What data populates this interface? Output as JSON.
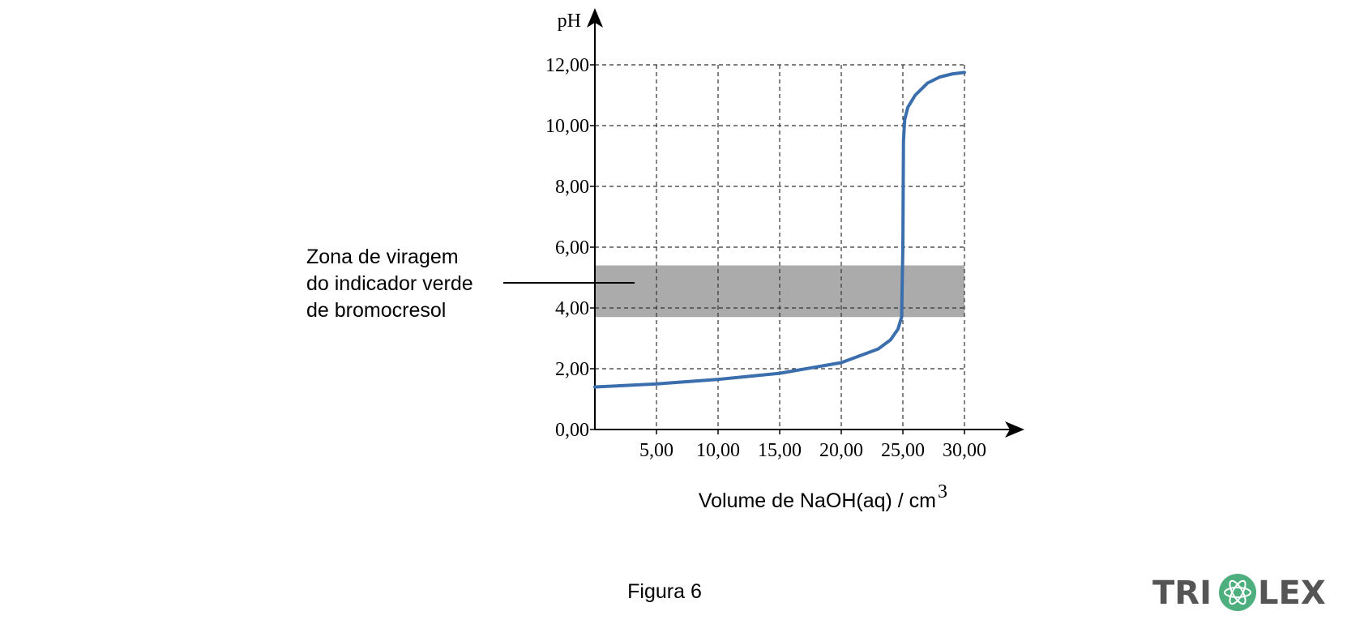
{
  "chart_data": {
    "type": "line",
    "y_label": "pH",
    "x_label": "Volume de NaOH(aq) / cm",
    "x_label_sup": "3",
    "x": [
      0,
      5,
      10,
      15,
      20,
      23,
      24,
      24.6,
      24.9,
      25.0,
      25.05,
      25.15,
      25.4,
      26,
      27,
      28,
      29,
      30
    ],
    "series": [
      {
        "color": "#3a6eac",
        "values": [
          1.4,
          1.5,
          1.65,
          1.85,
          2.2,
          2.65,
          2.95,
          3.3,
          3.7,
          6.0,
          9.5,
          10.2,
          10.6,
          11.0,
          11.4,
          11.6,
          11.7,
          11.75
        ]
      }
    ],
    "xlim": [
      0,
      30
    ],
    "ylim": [
      0,
      12
    ],
    "xticks": [
      {
        "value": 5,
        "label": "5,00"
      },
      {
        "value": 10,
        "label": "10,00"
      },
      {
        "value": 15,
        "label": "15,00"
      },
      {
        "value": 20,
        "label": "20,00"
      },
      {
        "value": 25,
        "label": "25,00"
      },
      {
        "value": 30,
        "label": "30,00"
      }
    ],
    "yticks": [
      {
        "value": 0,
        "label": "0,00"
      },
      {
        "value": 2,
        "label": "2,00"
      },
      {
        "value": 4,
        "label": "4,00"
      },
      {
        "value": 6,
        "label": "6,00"
      },
      {
        "value": 8,
        "label": "8,00"
      },
      {
        "value": 10,
        "label": "10,00"
      },
      {
        "value": 12,
        "label": "12,00"
      }
    ],
    "grid": true,
    "band": {
      "y": [
        3.7,
        5.4
      ],
      "color": "#ababab",
      "label": [
        "Zona de viragem",
        "do indicador verde",
        "de bromocresol"
      ]
    },
    "caption": "Figura 6"
  },
  "logo": {
    "left": "TRI",
    "right": "LEX"
  }
}
